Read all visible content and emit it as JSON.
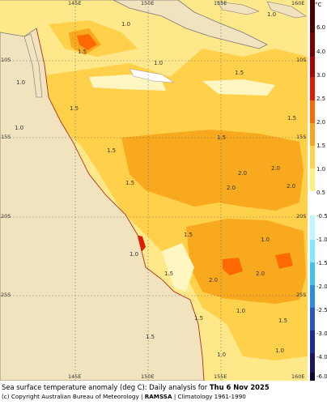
{
  "map": {
    "top_ticks": [
      "145E",
      "150E",
      "155E",
      "160E"
    ],
    "bottom_ticks": [
      "145E",
      "150E",
      "155E",
      "160E"
    ],
    "left_ticks": [
      "10S",
      "15S",
      "20S",
      "25S"
    ],
    "right_ticks": [
      "10S",
      "15S",
      "20S",
      "25S"
    ],
    "contour_labels": [
      "1.0",
      "1.0",
      "1.5",
      "1.0",
      "1.0",
      "1.5",
      "1.5",
      "1.5",
      "1.0",
      "1.5",
      "1.5",
      "2.0",
      "2.0",
      "1.5",
      "2.0",
      "2.0",
      "1.5",
      "1.0",
      "1.5",
      "2.0",
      "2.0",
      "1.5",
      "1.0",
      "1.5",
      "1.0",
      "1.0",
      "1.5",
      "1.0"
    ]
  },
  "legend": {
    "unit": "°C",
    "labels": [
      "6.0",
      "4.0",
      "3.0",
      "2.5",
      "2.0",
      "1.5",
      "1.0",
      "0.5",
      "-0.5",
      "-1.0",
      "-1.5",
      "-2.0",
      "-2.5",
      "-3.0",
      "-4.0",
      "-6.0"
    ],
    "colors_positive": [
      "#4a0000",
      "#7a0000",
      "#b00000",
      "#e21a00",
      "#ff6a00",
      "#ffa21a",
      "#ffd24a",
      "#fff07a"
    ],
    "colors_negative": [
      "#bff6ff",
      "#7de8ff",
      "#3fc4f0",
      "#2a8ee0",
      "#2a55c8",
      "#1f2a9a",
      "#1a1660",
      "#0d0a30"
    ]
  },
  "footer": {
    "title_prefix": "Sea surface temperature anomaly (deg C): Daily analysis for ",
    "title_date": "Thu 6 Nov 2025",
    "credit_prefix": "(c) Copyright Australian Bureau of Meteorology | ",
    "credit_bold": "RAMSSA",
    "credit_suffix": " | Climatology 1961-1990"
  }
}
